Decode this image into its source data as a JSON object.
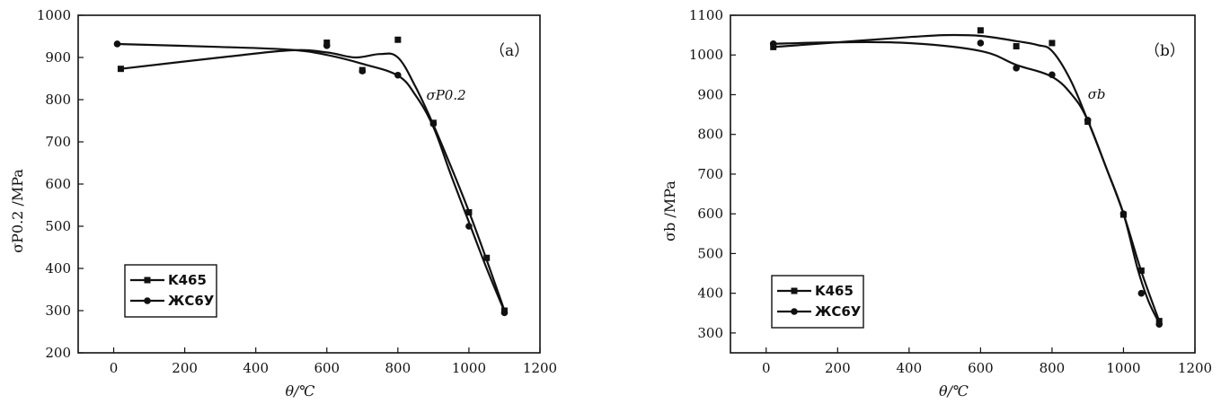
{
  "chart_data": [
    {
      "type": "line",
      "panel_label": "（a）",
      "annotation": "σP0.2",
      "xlabel": "θ/℃",
      "ylabel": "σP0.2 /MPa",
      "xlim": [
        -100,
        1200
      ],
      "ylim": [
        200,
        1000
      ],
      "xticks": [
        0,
        200,
        400,
        600,
        800,
        1000,
        1200
      ],
      "yticks": [
        200,
        300,
        400,
        500,
        600,
        700,
        800,
        900,
        1000
      ],
      "legend_position": "bottom-left",
      "series": [
        {
          "name": "K465",
          "marker": "square",
          "points": [
            [
              20,
              873
            ],
            [
              600,
              935
            ],
            [
              700,
              870
            ],
            [
              800,
              942
            ],
            [
              900,
              745
            ],
            [
              1000,
              533
            ],
            [
              1050,
              425
            ],
            [
              1100,
              300
            ]
          ],
          "curve": [
            [
              20,
              873
            ],
            [
              300,
              900
            ],
            [
              500,
              917
            ],
            [
              600,
              912
            ],
            [
              680,
              900
            ],
            [
              750,
              908
            ],
            [
              800,
              900
            ],
            [
              850,
              830
            ],
            [
              900,
              740
            ],
            [
              950,
              640
            ],
            [
              1000,
              535
            ],
            [
              1050,
              420
            ],
            [
              1100,
              300
            ]
          ]
        },
        {
          "name": "ЖС6У",
          "marker": "circle",
          "points": [
            [
              10,
              932
            ],
            [
              600,
              928
            ],
            [
              700,
              868
            ],
            [
              800,
              858
            ],
            [
              900,
              743
            ],
            [
              1000,
              500
            ],
            [
              1100,
              295
            ]
          ],
          "curve": [
            [
              10,
              932
            ],
            [
              300,
              925
            ],
            [
              500,
              918
            ],
            [
              600,
              906
            ],
            [
              700,
              885
            ],
            [
              800,
              857
            ],
            [
              850,
              810
            ],
            [
              900,
              735
            ],
            [
              950,
              620
            ],
            [
              1000,
              510
            ],
            [
              1050,
              400
            ],
            [
              1100,
              298
            ]
          ]
        }
      ]
    },
    {
      "type": "line",
      "panel_label": "（b）",
      "annotation": "σb",
      "xlabel": "θ/℃",
      "ylabel": "σb /MPa",
      "xlim": [
        -100,
        1200
      ],
      "ylim": [
        250,
        1100
      ],
      "xticks": [
        0,
        200,
        400,
        600,
        800,
        1000,
        1200
      ],
      "yticks": [
        300,
        400,
        500,
        600,
        700,
        800,
        900,
        1000,
        1100
      ],
      "legend_position": "bottom-left",
      "series": [
        {
          "name": "K465",
          "marker": "square",
          "points": [
            [
              20,
              1020
            ],
            [
              600,
              1062
            ],
            [
              700,
              1022
            ],
            [
              800,
              1030
            ],
            [
              900,
              832
            ],
            [
              1000,
              598
            ],
            [
              1050,
              457
            ],
            [
              1100,
              330
            ]
          ],
          "curve": [
            [
              20,
              1020
            ],
            [
              200,
              1032
            ],
            [
              400,
              1045
            ],
            [
              500,
              1050
            ],
            [
              600,
              1048
            ],
            [
              700,
              1035
            ],
            [
              760,
              1025
            ],
            [
              800,
              1010
            ],
            [
              850,
              940
            ],
            [
              900,
              835
            ],
            [
              950,
              720
            ],
            [
              1000,
              600
            ],
            [
              1050,
              455
            ],
            [
              1100,
              330
            ]
          ]
        },
        {
          "name": "ЖС6У",
          "marker": "circle",
          "points": [
            [
              20,
              1028
            ],
            [
              600,
              1030
            ],
            [
              700,
              967
            ],
            [
              800,
              950
            ],
            [
              900,
              836
            ],
            [
              1000,
              600
            ],
            [
              1050,
              400
            ],
            [
              1100,
              322
            ]
          ],
          "curve": [
            [
              20,
              1028
            ],
            [
              200,
              1032
            ],
            [
              400,
              1030
            ],
            [
              600,
              1010
            ],
            [
              700,
              975
            ],
            [
              800,
              945
            ],
            [
              860,
              895
            ],
            [
              900,
              835
            ],
            [
              950,
              720
            ],
            [
              1000,
              600
            ],
            [
              1040,
              460
            ],
            [
              1070,
              380
            ],
            [
              1100,
              325
            ]
          ]
        }
      ]
    }
  ]
}
